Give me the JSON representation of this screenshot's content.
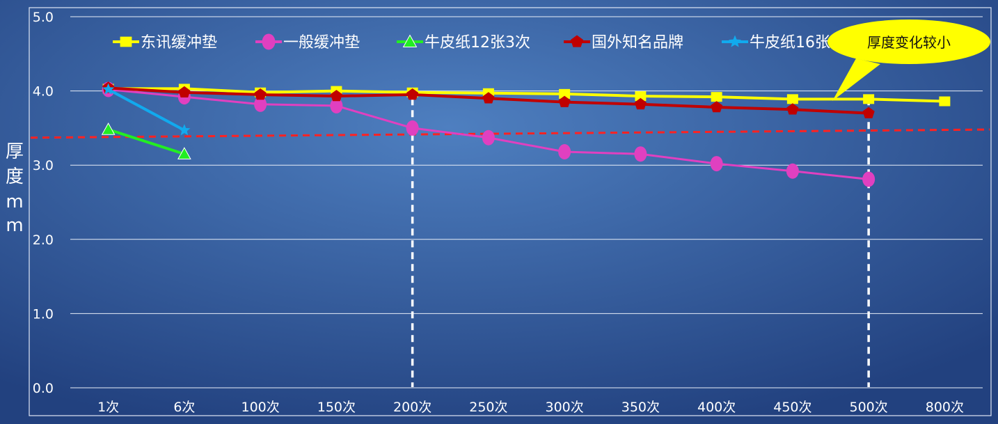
{
  "chart_data": {
    "type": "line",
    "title": "",
    "ylabel_chars": [
      "厚",
      "度",
      "m",
      "m"
    ],
    "xlabel": "",
    "ylim": [
      0,
      5
    ],
    "yticks": [
      "0.0",
      "1.0",
      "2.0",
      "3.0",
      "4.0",
      "5.0"
    ],
    "categories": [
      "1次",
      "6次",
      "100次",
      "150次",
      "200次",
      "250次",
      "300次",
      "350次",
      "400次",
      "450次",
      "500次",
      "800次"
    ],
    "grid": true,
    "legend_position": "top",
    "series": [
      {
        "name": "东讯缓冲垫",
        "color": "#ffff00",
        "marker": "square",
        "values": [
          4.03,
          4.03,
          3.98,
          4.0,
          3.98,
          3.97,
          3.96,
          3.93,
          3.92,
          3.89,
          3.89,
          3.86
        ]
      },
      {
        "name": "一般缓冲垫",
        "color": "#e040c0",
        "marker": "circle",
        "values": [
          4.02,
          3.92,
          3.82,
          3.8,
          3.5,
          3.37,
          3.18,
          3.15,
          3.02,
          2.92,
          2.81,
          null
        ]
      },
      {
        "name": "牛皮纸12张3次",
        "color": "#22ee22",
        "marker": "triangle",
        "values": [
          3.48,
          3.15,
          null,
          null,
          null,
          null,
          null,
          null,
          null,
          null,
          null,
          null
        ]
      },
      {
        "name": "国外知名品牌",
        "color": "#c00000",
        "marker": "pentagon",
        "values": [
          4.04,
          3.98,
          3.95,
          3.93,
          3.95,
          3.9,
          3.85,
          3.82,
          3.78,
          3.75,
          3.7,
          null
        ]
      },
      {
        "name": "牛皮纸16张4次",
        "color": "#11aaee",
        "marker": "star",
        "values": [
          4.02,
          3.47,
          null,
          null,
          null,
          null,
          null,
          null,
          null,
          null,
          null,
          null
        ]
      }
    ],
    "reference_line": {
      "color": "#ff2222",
      "y_start": 3.37,
      "y_end": 3.48
    },
    "vertical_markers": [
      "200次",
      "500次"
    ],
    "annotation": {
      "text": "厚度变化较小",
      "fill": "#ffff00"
    }
  }
}
